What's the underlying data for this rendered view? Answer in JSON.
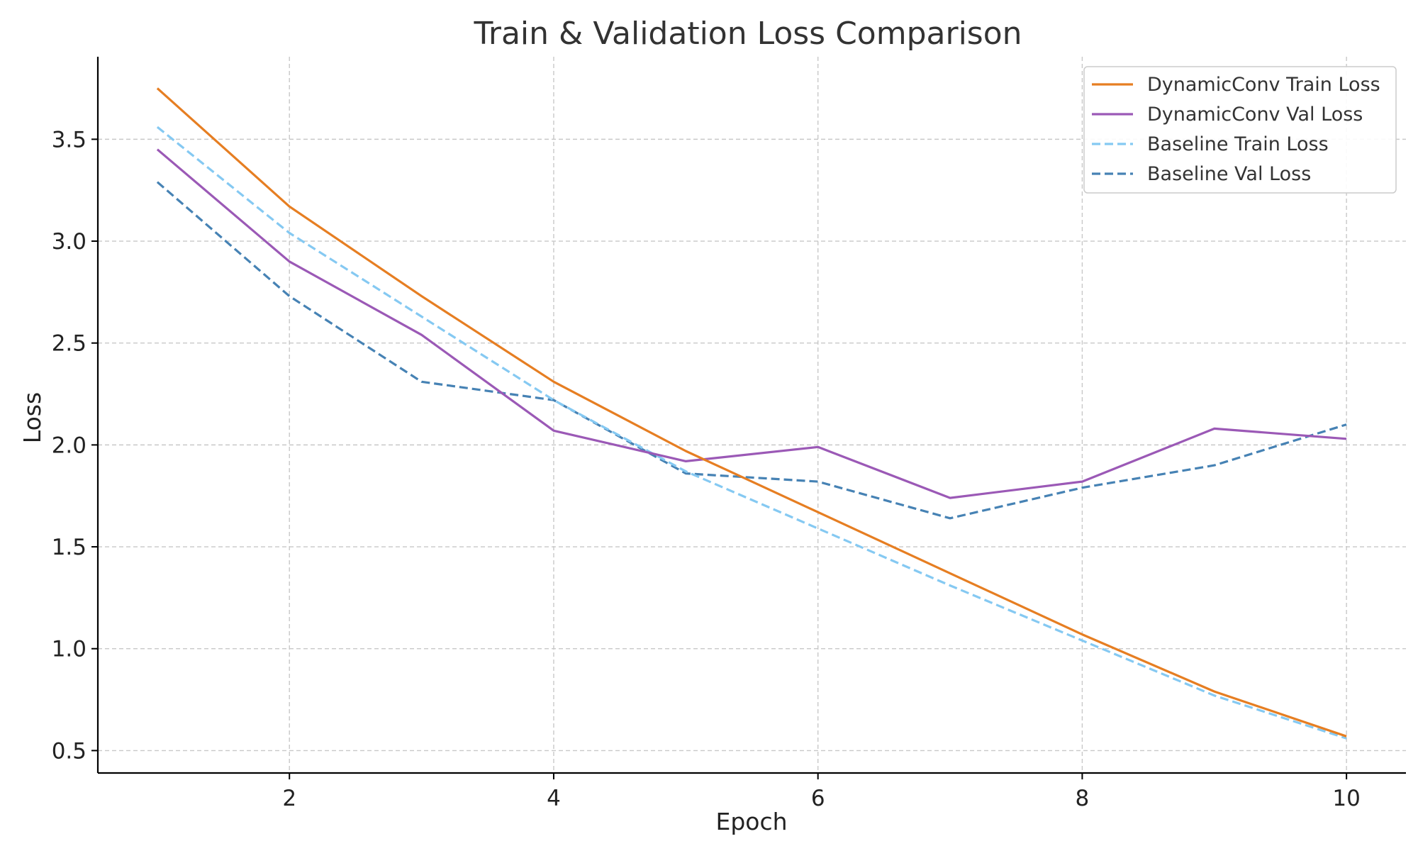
{
  "chart_data": {
    "type": "line",
    "title": "Train & Validation Loss Comparison",
    "xlabel": "Epoch",
    "ylabel": "Loss",
    "x": [
      1,
      2,
      3,
      4,
      5,
      6,
      7,
      8,
      9,
      10
    ],
    "xlim": [
      0.55,
      10.45
    ],
    "ylim": [
      0.39,
      3.905
    ],
    "xticks": [
      2,
      4,
      6,
      8,
      10
    ],
    "xtick_labels": [
      "2",
      "4",
      "6",
      "8",
      "10"
    ],
    "yticks": [
      0.5,
      1.0,
      1.5,
      2.0,
      2.5,
      3.0,
      3.5
    ],
    "ytick_labels": [
      "0.5",
      "1.0",
      "1.5",
      "2.0",
      "2.5",
      "3.0",
      "3.5"
    ],
    "grid": true,
    "legend_position": "top-right",
    "series": [
      {
        "name": "DynamicConv Train Loss",
        "color": "#e67e22",
        "style": "solid",
        "values": [
          3.75,
          3.17,
          2.73,
          2.31,
          1.97,
          1.67,
          1.37,
          1.07,
          0.79,
          0.57
        ]
      },
      {
        "name": "DynamicConv Val Loss",
        "color": "#9b59b6",
        "style": "solid",
        "values": [
          3.45,
          2.9,
          2.54,
          2.07,
          1.92,
          1.99,
          1.74,
          1.82,
          2.08,
          2.03
        ]
      },
      {
        "name": "Baseline Train Loss",
        "color": "#85c9f2",
        "style": "dashed",
        "values": [
          3.56,
          3.04,
          2.63,
          2.22,
          1.87,
          1.59,
          1.31,
          1.04,
          0.77,
          0.56
        ]
      },
      {
        "name": "Baseline Val Loss",
        "color": "#4682b4",
        "style": "dashed",
        "values": [
          3.29,
          2.73,
          2.31,
          2.22,
          1.86,
          1.82,
          1.64,
          1.79,
          1.9,
          2.1
        ]
      }
    ]
  }
}
